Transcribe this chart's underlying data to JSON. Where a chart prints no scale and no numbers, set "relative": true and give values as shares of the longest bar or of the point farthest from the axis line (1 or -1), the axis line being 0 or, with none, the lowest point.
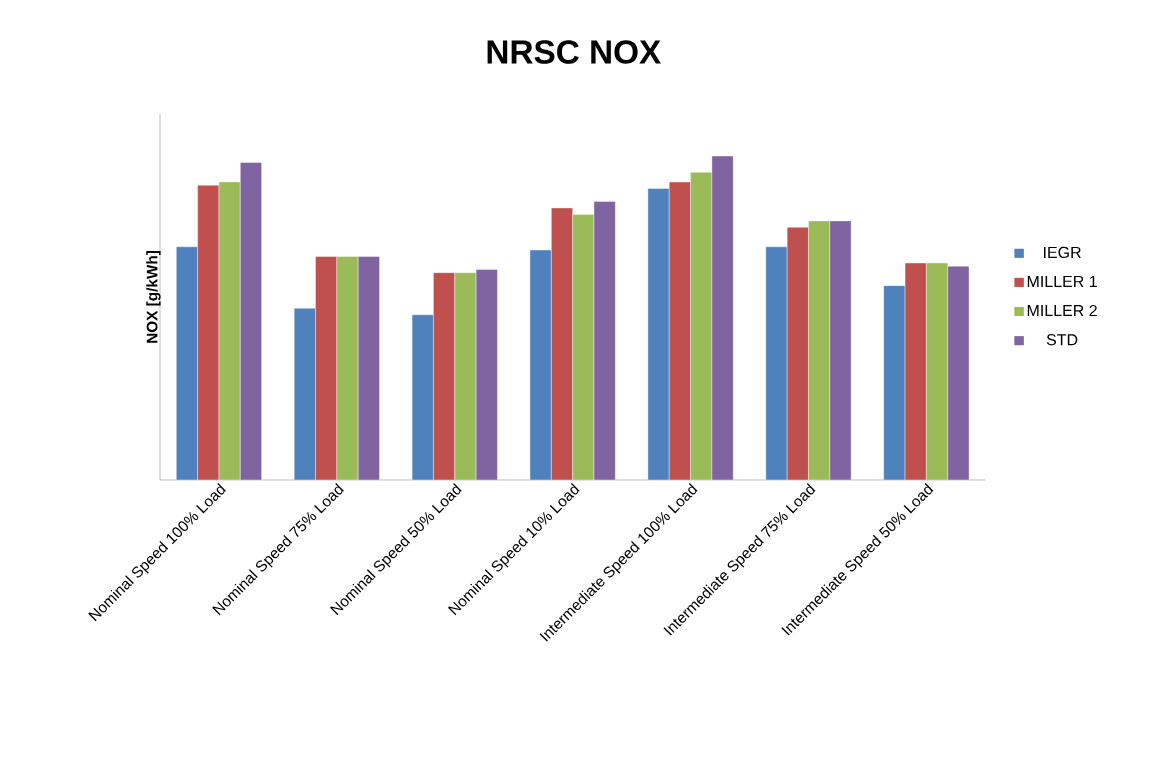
{
  "chart_data": {
    "type": "bar",
    "title": "NRSC  NOX",
    "ylabel": "NOX [g/kWh]",
    "relative": true,
    "legend": "right",
    "categories": [
      "Nominal Speed 100% Load",
      "Nominal Speed 75% Load",
      "Nominal Speed 50% Load",
      "Nominal Speed 10% Load",
      "Intermediate Speed 100% Load",
      "Intermediate Speed 75% Load",
      "Intermediate Speed 50% Load"
    ],
    "series": [
      {
        "name": "IEGR",
        "color": "#4f81bd",
        "values": [
          0.72,
          0.53,
          0.51,
          0.71,
          0.9,
          0.72,
          0.6
        ]
      },
      {
        "name": "MILLER 1",
        "color": "#c0504d",
        "values": [
          0.91,
          0.69,
          0.64,
          0.84,
          0.92,
          0.78,
          0.67
        ]
      },
      {
        "name": "MILLER 2",
        "color": "#9bbb59",
        "values": [
          0.92,
          0.69,
          0.64,
          0.82,
          0.95,
          0.8,
          0.67
        ]
      },
      {
        "name": "STD",
        "color": "#8064a2",
        "values": [
          0.98,
          0.69,
          0.65,
          0.86,
          1,
          0.8,
          0.66
        ]
      }
    ]
  }
}
